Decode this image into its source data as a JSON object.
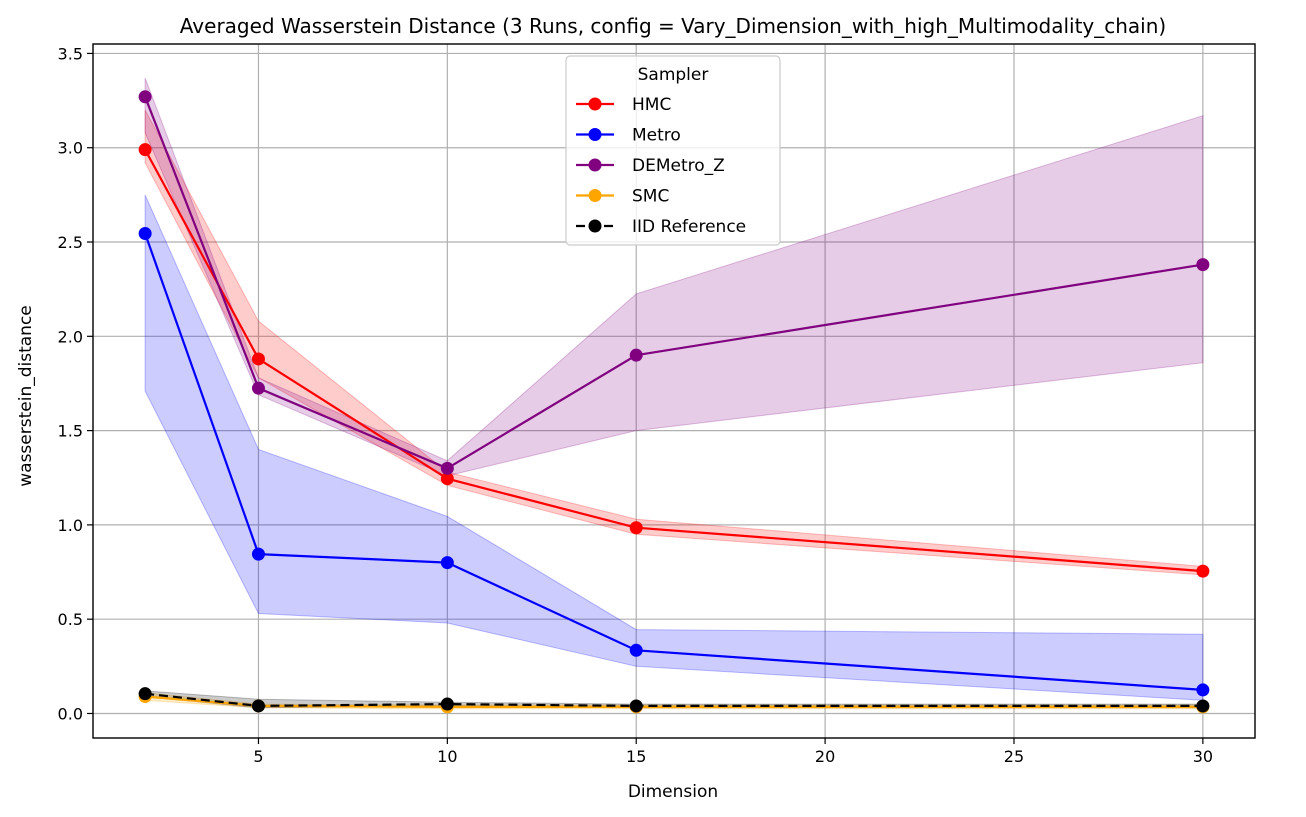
{
  "chart_data": {
    "type": "line",
    "title": "Averaged Wasserstein Distance (3 Runs, config = Vary_Dimension_with_high_Multimodality_chain)",
    "xlabel": "Dimension",
    "ylabel": "wasserstein_distance",
    "xlim": [
      0.62,
      31.38
    ],
    "ylim": [
      -0.13,
      3.55
    ],
    "xticks": [
      5,
      10,
      15,
      20,
      25,
      30
    ],
    "yticks": [
      0.0,
      0.5,
      1.0,
      1.5,
      2.0,
      2.5,
      3.0,
      3.5
    ],
    "xtick_labels": [
      "5",
      "10",
      "15",
      "20",
      "25",
      "30"
    ],
    "ytick_labels": [
      "0.0",
      "0.5",
      "1.0",
      "1.5",
      "2.0",
      "2.5",
      "3.0",
      "3.5"
    ],
    "grid": true,
    "legend": {
      "title": "Sampler",
      "placement": "top-center"
    },
    "x": [
      2,
      5,
      10,
      15,
      30
    ],
    "series": [
      {
        "name": "HMC",
        "color": "#ff0000",
        "style": "solid",
        "values": [
          2.99,
          1.88,
          1.245,
          0.985,
          0.755
        ],
        "lower": [
          2.92,
          1.78,
          1.21,
          0.95,
          0.735
        ],
        "upper": [
          3.2,
          2.08,
          1.28,
          1.03,
          0.78
        ]
      },
      {
        "name": "Metro",
        "color": "#0000ff",
        "style": "solid",
        "values": [
          2.545,
          0.845,
          0.8,
          0.335,
          0.125
        ],
        "lower": [
          1.71,
          0.53,
          0.48,
          0.25,
          0.07
        ],
        "upper": [
          2.75,
          1.4,
          1.045,
          0.445,
          0.42
        ]
      },
      {
        "name": "DEMetro_Z",
        "color": "#800080",
        "style": "solid",
        "values": [
          3.27,
          1.725,
          1.3,
          1.9,
          2.38
        ],
        "lower": [
          3.08,
          1.69,
          1.26,
          1.5,
          1.86
        ],
        "upper": [
          3.37,
          1.78,
          1.34,
          2.225,
          3.17
        ]
      },
      {
        "name": "SMC",
        "color": "#ffa500",
        "style": "solid",
        "values": [
          0.09,
          0.04,
          0.035,
          0.035,
          0.035
        ],
        "lower": [
          0.07,
          0.03,
          0.025,
          0.025,
          0.025
        ],
        "upper": [
          0.11,
          0.05,
          0.045,
          0.045,
          0.045
        ]
      },
      {
        "name": "IID Reference",
        "color": "#000000",
        "style": "dashed",
        "values": [
          0.105,
          0.04,
          0.05,
          0.04,
          0.04
        ],
        "lower": [
          0.09,
          0.03,
          0.04,
          0.03,
          0.03
        ],
        "upper": [
          0.12,
          0.075,
          0.06,
          0.05,
          0.05
        ]
      }
    ]
  }
}
